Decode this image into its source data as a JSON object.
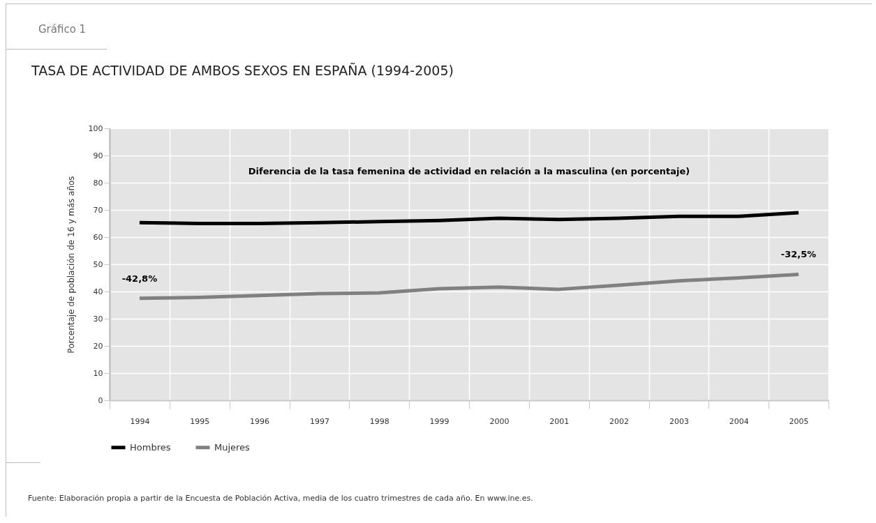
{
  "chart_data": {
    "type": "line",
    "title": "TASA DE ACTIVIDAD DE AMBOS SEXOS EN ESPAÑA (1994-2005)",
    "ylabel": "Porcentaje de población de 16 y más años",
    "categories": [
      "1994",
      "1995",
      "1996",
      "1997",
      "1998",
      "1999",
      "2000",
      "2001",
      "2002",
      "2003",
      "2004",
      "2005"
    ],
    "series": [
      {
        "name": "Hombres",
        "color": "#000000",
        "values": [
          65.3,
          65.0,
          65.0,
          65.3,
          65.7,
          66.1,
          66.9,
          66.5,
          66.9,
          67.6,
          67.6,
          69.0
        ]
      },
      {
        "name": "Mujeres",
        "color": "#808080",
        "values": [
          37.5,
          37.8,
          38.5,
          39.2,
          39.5,
          41.0,
          41.6,
          40.8,
          42.3,
          43.9,
          45.0,
          46.3
        ]
      }
    ],
    "ylim": [
      0,
      100
    ],
    "yticks": [
      0,
      10,
      20,
      30,
      40,
      50,
      60,
      70,
      80,
      90,
      100
    ],
    "grid": true,
    "legend": "bottom left",
    "annotations": [
      "Gráfico 1",
      "Diferencia de la tasa femenina de actividad en relación a la masculina (en porcentaje)",
      {
        "text": "-42,8%",
        "x": "1994",
        "y": 37.5
      },
      {
        "text": "-32,5%",
        "x": "2005",
        "y": 46.3
      },
      "Fuente: Elaboración propia a partir de la Encuesta de Población Activa, media de los cuatro trimestres de cada año. En www.ine.es."
    ]
  }
}
